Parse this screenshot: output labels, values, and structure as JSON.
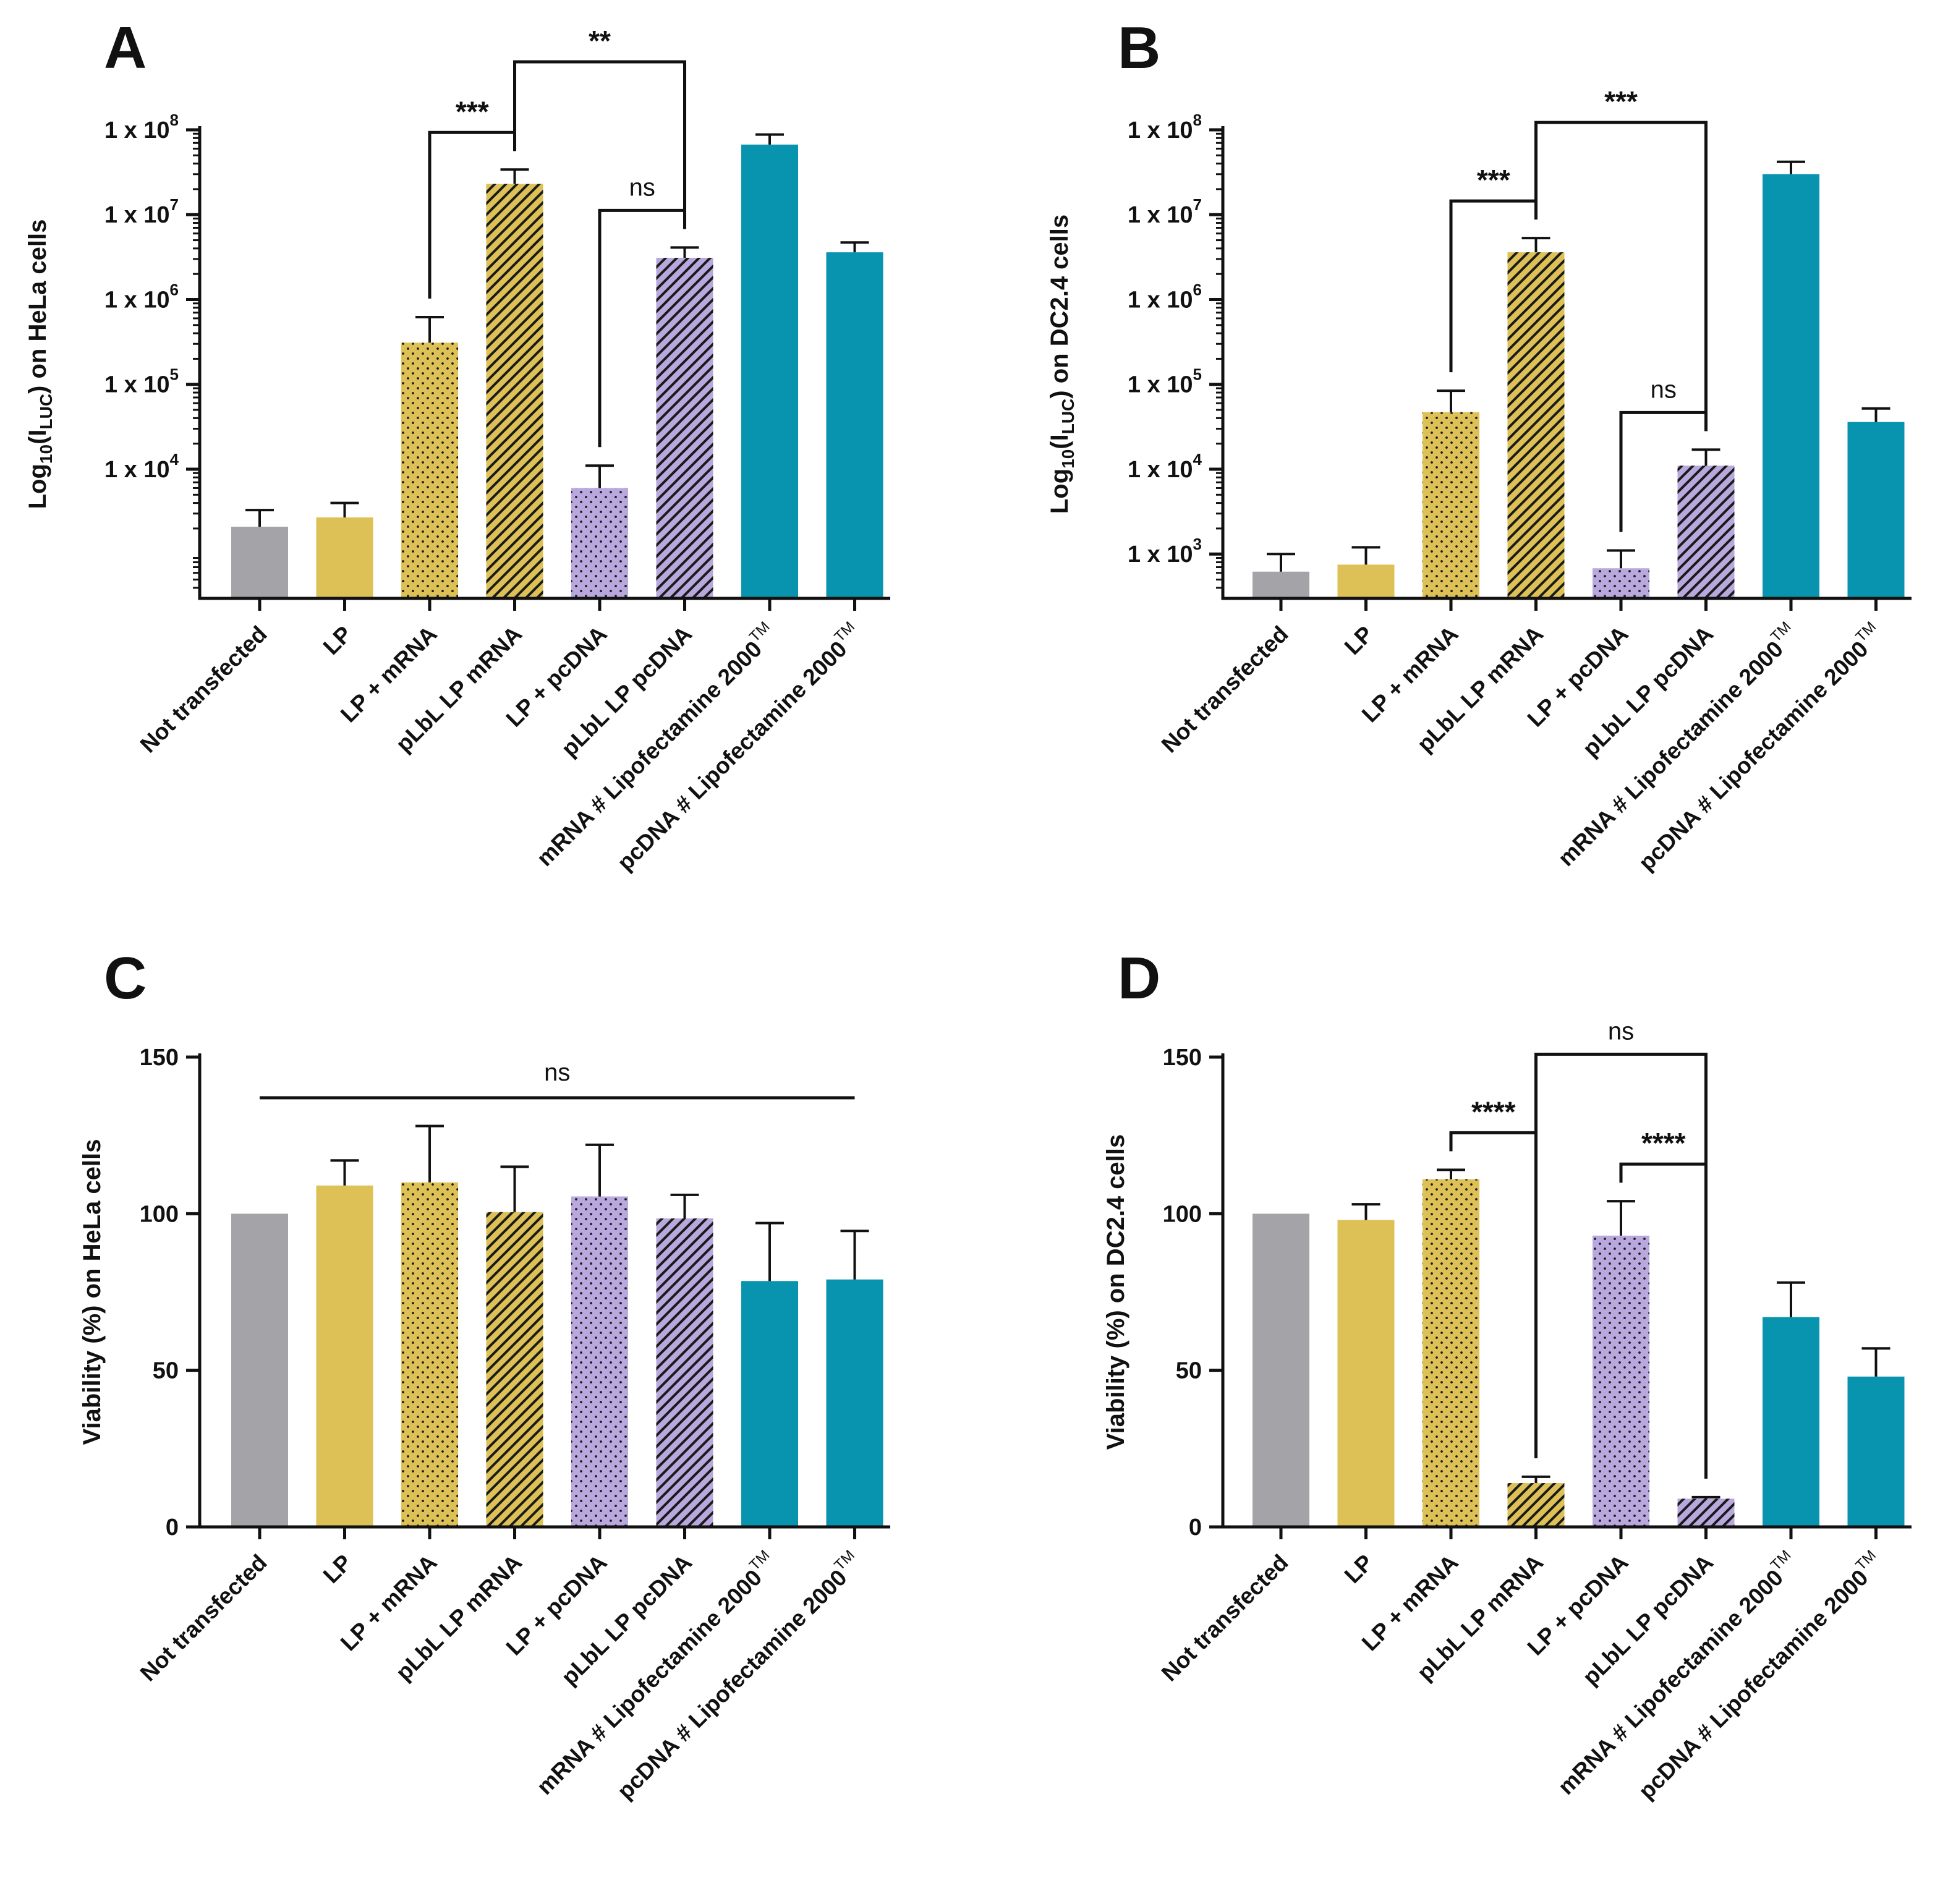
{
  "figure": {
    "categories": [
      "Not transfected",
      "LP",
      "LP + mRNA",
      "pLbL LP mRNA",
      "LP + pcDNA",
      "pLbL LP pcDNA",
      "mRNA # Lipofectamine 2000",
      "pcDNA # Lipofectamine 2000"
    ],
    "trademark": "TM",
    "colors": {
      "gray": "#a3a3a8",
      "yellow": "#ddc156",
      "purple": "#b8a8dd",
      "teal": "#0894ae",
      "axis": "#111111",
      "hatch": "#1a1a1a"
    },
    "bar_styles": [
      {
        "color": "gray",
        "pattern": "solid"
      },
      {
        "color": "yellow",
        "pattern": "solid"
      },
      {
        "color": "yellow",
        "pattern": "dots"
      },
      {
        "color": "yellow",
        "pattern": "hatch"
      },
      {
        "color": "purple",
        "pattern": "dots"
      },
      {
        "color": "purple",
        "pattern": "hatch"
      },
      {
        "color": "teal",
        "pattern": "solid"
      },
      {
        "color": "teal",
        "pattern": "solid"
      }
    ]
  },
  "chart_data": [
    {
      "panel": "A",
      "type": "bar",
      "yscale": "log",
      "ylabel": {
        "main": "Log",
        "sub1": "10",
        "mid": "(I",
        "sub2": "LUC",
        "end": ") on HeLa cells"
      },
      "ylim": [
        300,
        100000000
      ],
      "yticks": [
        10000,
        100000,
        1000000,
        10000000,
        100000000
      ],
      "ytick_labels": [
        {
          "base": "1 x 10",
          "exp": "4"
        },
        {
          "base": "1 x 10",
          "exp": "5"
        },
        {
          "base": "1 x 10",
          "exp": "6"
        },
        {
          "base": "1 x 10",
          "exp": "7"
        },
        {
          "base": "1 x 10",
          "exp": "8"
        }
      ],
      "values": [
        2100,
        2700,
        310000,
        23000000,
        6000,
        3100000,
        67000000,
        3600000
      ],
      "errors_upper": [
        3300,
        4000,
        620000,
        34000000,
        11000,
        4100000,
        88000000,
        4700000
      ],
      "brackets": [
        {
          "from": 2,
          "to": 3,
          "label": "***",
          "ns": false
        },
        {
          "from": 3,
          "to": 5,
          "label": "**",
          "ns": false
        },
        {
          "from": 4,
          "to": 5,
          "label": "ns",
          "ns": true
        }
      ]
    },
    {
      "panel": "B",
      "type": "bar",
      "yscale": "log",
      "ylabel": {
        "main": "Log",
        "sub1": "10",
        "mid": "(I",
        "sub2": "LUC",
        "end": ") on DC2.4 cells"
      },
      "ylim": [
        300,
        100000000
      ],
      "yticks": [
        1000,
        10000,
        100000,
        1000000,
        10000000,
        100000000
      ],
      "ytick_labels": [
        {
          "base": "1 x 10",
          "exp": "3"
        },
        {
          "base": "1 x 10",
          "exp": "4"
        },
        {
          "base": "1 x 10",
          "exp": "5"
        },
        {
          "base": "1 x 10",
          "exp": "6"
        },
        {
          "base": "1 x 10",
          "exp": "7"
        },
        {
          "base": "1 x 10",
          "exp": "8"
        }
      ],
      "values": [
        620,
        750,
        47000,
        3600000,
        680,
        11000,
        30000000,
        36000
      ],
      "errors_upper": [
        1000,
        1200,
        84000,
        5300000,
        1100,
        17000,
        42000000,
        52000
      ],
      "brackets": [
        {
          "from": 2,
          "to": 3,
          "label": "***",
          "ns": false
        },
        {
          "from": 3,
          "to": 5,
          "label": "***",
          "ns": false
        },
        {
          "from": 4,
          "to": 5,
          "label": "ns",
          "ns": true
        }
      ]
    },
    {
      "panel": "C",
      "type": "bar",
      "yscale": "linear",
      "ylabel": {
        "main": "Viability (%) on HeLa cells"
      },
      "ylim": [
        0,
        150
      ],
      "yticks": [
        0,
        50,
        100,
        150
      ],
      "ytick_labels": [
        {
          "base": "0"
        },
        {
          "base": "50"
        },
        {
          "base": "100"
        },
        {
          "base": "150"
        }
      ],
      "values": [
        100,
        109,
        110,
        100.5,
        105.5,
        98.5,
        78.5,
        79
      ],
      "errors_upper": [
        100,
        117,
        128,
        115,
        122,
        106,
        97,
        94.5
      ],
      "line": {
        "from": 0,
        "to": 7,
        "y": 137,
        "label": "ns"
      },
      "brackets": []
    },
    {
      "panel": "D",
      "type": "bar",
      "yscale": "linear",
      "ylabel": {
        "main": "Viability (%) on DC2.4 cells"
      },
      "ylim": [
        0,
        150
      ],
      "yticks": [
        0,
        50,
        100,
        150
      ],
      "ytick_labels": [
        {
          "base": "0"
        },
        {
          "base": "50"
        },
        {
          "base": "100"
        },
        {
          "base": "150"
        }
      ],
      "values": [
        100,
        98,
        111,
        14,
        93,
        9,
        67,
        48
      ],
      "errors_upper": [
        100,
        103,
        114,
        16,
        104,
        9.5,
        78,
        57
      ],
      "brackets": [
        {
          "from": 2,
          "to": 3,
          "label": "****",
          "ns": false
        },
        {
          "from": 3,
          "to": 5,
          "label": "ns",
          "ns": true
        },
        {
          "from": 4,
          "to": 5,
          "label": "****",
          "ns": false
        }
      ]
    }
  ]
}
